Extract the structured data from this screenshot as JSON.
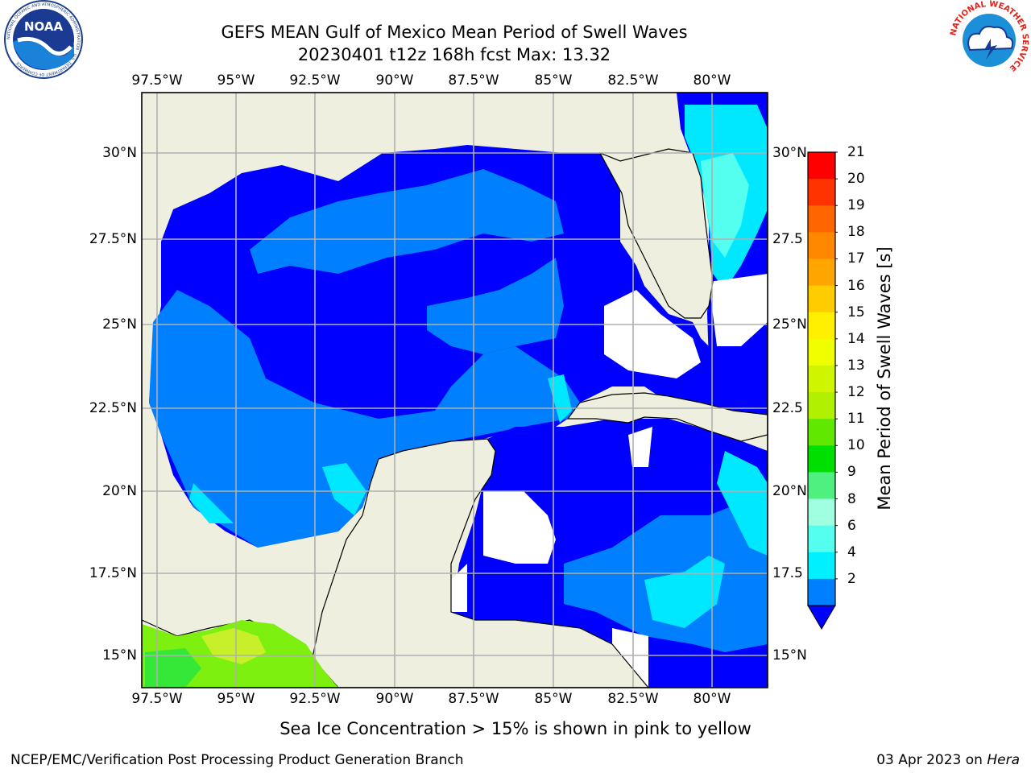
{
  "header": {
    "title_line1": "GEFS MEAN Gulf of Mexico Mean Period of Swell Waves",
    "title_line2": "20230401 t12z 168h fcst   Max: 13.32"
  },
  "logos": {
    "left_text": "NOAA",
    "left_ring": "NATIONAL OCEANIC AND ATMOSPHERIC ADMINISTRATION · U.S. DEPARTMENT OF COMMERCE",
    "right_ring": "NATIONAL WEATHER SERVICE"
  },
  "map": {
    "lon_ticks": [
      "97.5°W",
      "95°W",
      "92.5°W",
      "90°W",
      "87.5°W",
      "85°W",
      "82.5°W",
      "80°W"
    ],
    "lat_ticks": [
      "30°N",
      "27.5°N",
      "25°N",
      "22.5°N",
      "20°N",
      "17.5°N",
      "15°N"
    ],
    "lat_ticks_right": [
      "30°N",
      "27.5",
      "25°N",
      "22.5",
      "20°N",
      "17.5",
      "15°N"
    ],
    "colors": {
      "land": "#efefdf",
      "ocean_2_4": "#0080ff",
      "ocean_lt2": "#0000ff",
      "ocean_4_6": "#00e8ff",
      "green_10_11": "#35e838",
      "green_11_12": "#7ef010",
      "yellow_green": "#c8f02a",
      "grid": "#b0b0b0"
    }
  },
  "colorbar": {
    "label": "Mean Period of Swell Waves [s]",
    "ticks": [
      "21",
      "20",
      "19",
      "18",
      "17",
      "16",
      "15",
      "14",
      "13",
      "12",
      "11",
      "10",
      "9",
      "8",
      "6",
      "4",
      "2"
    ],
    "band_colors": [
      "#ff0000",
      "#ff3300",
      "#ff6600",
      "#ff8800",
      "#ffa500",
      "#ffcc00",
      "#fff000",
      "#f0ff00",
      "#d0f500",
      "#b0f000",
      "#60e800",
      "#00e000",
      "#50f080",
      "#a0ffe0",
      "#55fff0",
      "#00f0ff",
      "#0080ff"
    ],
    "extend_color": "#0000ff"
  },
  "footer": {
    "ice_note": "Sea Ice Concentration > 15% is shown in pink to yellow",
    "branch": "NCEP/EMC/Verification Post Processing Product Generation Branch",
    "date": "03 Apr 2023 on",
    "machine": "Hera"
  }
}
